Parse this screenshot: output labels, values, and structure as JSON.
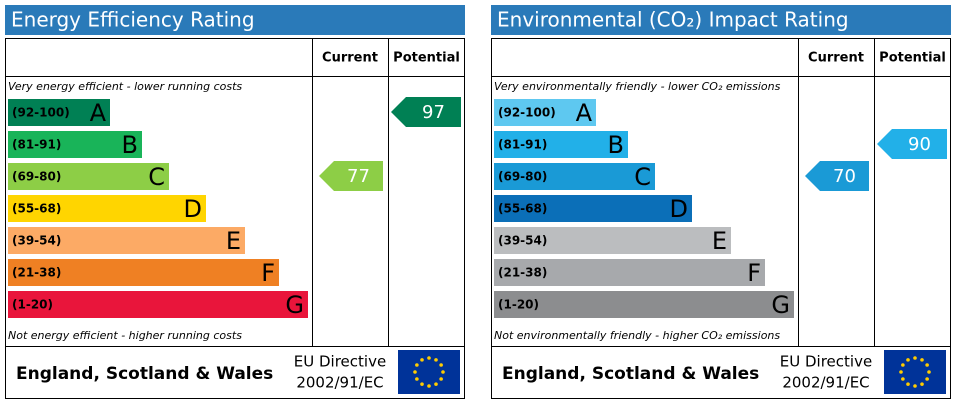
{
  "panels": [
    {
      "title": "Energy Efficiency Rating",
      "col_current": "Current",
      "col_potential": "Potential",
      "top_note": "Very energy efficient - lower running costs",
      "bottom_note": "Not energy efficient - higher running costs",
      "bands": [
        {
          "range": "(92-100)",
          "letter": "A",
          "color": "#008054"
        },
        {
          "range": "(81-91)",
          "letter": "B",
          "color": "#19b459"
        },
        {
          "range": "(69-80)",
          "letter": "C",
          "color": "#8dce46"
        },
        {
          "range": "(55-68)",
          "letter": "D",
          "color": "#ffd500"
        },
        {
          "range": "(39-54)",
          "letter": "E",
          "color": "#fcaa65"
        },
        {
          "range": "(21-38)",
          "letter": "F",
          "color": "#ef8023"
        },
        {
          "range": "(1-20)",
          "letter": "G",
          "color": "#e9153b"
        }
      ],
      "current": 77,
      "potential": 97,
      "footer_region": "England, Scotland & Wales",
      "directive_1": "EU Directive",
      "directive_2": "2002/91/EC"
    },
    {
      "title": "Environmental (CO₂) Impact Rating",
      "col_current": "Current",
      "col_potential": "Potential",
      "top_note": "Very environmentally friendly - lower CO₂ emissions",
      "bottom_note": "Not environmentally friendly - higher CO₂ emissions",
      "bands": [
        {
          "range": "(92-100)",
          "letter": "A",
          "color": "#5ec8f0"
        },
        {
          "range": "(81-91)",
          "letter": "B",
          "color": "#22b0e8"
        },
        {
          "range": "(69-80)",
          "letter": "C",
          "color": "#1a9ad6"
        },
        {
          "range": "(55-68)",
          "letter": "D",
          "color": "#0b6fb8"
        },
        {
          "range": "(39-54)",
          "letter": "E",
          "color": "#bbbdbf"
        },
        {
          "range": "(21-38)",
          "letter": "F",
          "color": "#a7a9ac"
        },
        {
          "range": "(1-20)",
          "letter": "G",
          "color": "#8c8d8f"
        }
      ],
      "current": 70,
      "potential": 90,
      "footer_region": "England, Scotland & Wales",
      "directive_1": "EU Directive",
      "directive_2": "2002/91/EC"
    }
  ]
}
